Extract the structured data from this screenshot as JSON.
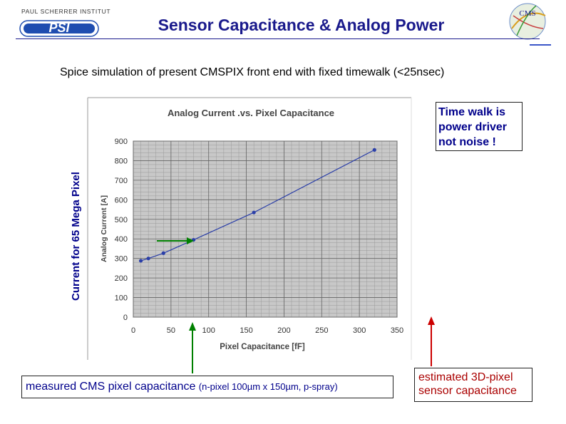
{
  "header": {
    "institute_text": "PAUL SCHERRER INSTITUT",
    "logo_letters": "PSI",
    "cms_logo_text": "CMS",
    "title": "Sensor Capacitance & Analog Power",
    "colors": {
      "title": "#1a1a8c",
      "logo_blue": "#1f4db0"
    }
  },
  "subtitle": "Spice simulation of present CMSPIX front end with fixed timewalk  (<25nsec)",
  "outer_ylabel": "Current for 65 Mega Pixel",
  "note": {
    "line1": "Time walk is",
    "line2": "power driver",
    "line3": "not noise !"
  },
  "measured": {
    "main": "measured CMS pixel capacitance",
    "detail": "(n-pixel 100µm x 150µm, p-spray)"
  },
  "estimated": {
    "line1": "estimated 3D-pixel",
    "line2": "sensor capacitance"
  },
  "chart_data": {
    "type": "line",
    "title": "Analog Current  .vs.  Pixel Capacitance",
    "xlabel": "Pixel Capacitance  [fF]",
    "ylabel": "Analog Current  [A]",
    "xlim": [
      0,
      350
    ],
    "ylim": [
      0,
      900
    ],
    "xticks": [
      0,
      50,
      100,
      150,
      200,
      250,
      300,
      350
    ],
    "yticks": [
      0,
      100,
      200,
      300,
      400,
      500,
      600,
      700,
      800,
      900
    ],
    "grid": true,
    "series": [
      {
        "name": "Analog Current",
        "color": "#2b3fa8",
        "x": [
          10,
          20,
          40,
          80,
          160,
          320
        ],
        "y": [
          288,
          300,
          327,
          395,
          535,
          855
        ]
      }
    ],
    "arrows": [
      {
        "name": "measured",
        "color": "#008000"
      },
      {
        "name": "estimated",
        "color": "#cc0000"
      }
    ]
  }
}
